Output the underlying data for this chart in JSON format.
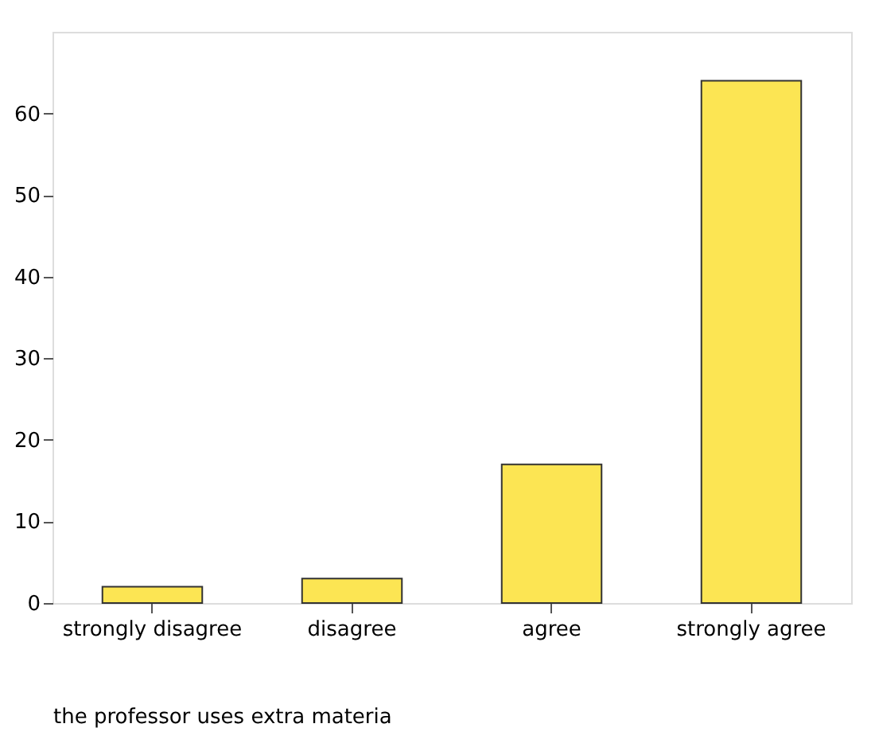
{
  "chart_data": {
    "type": "bar",
    "xlabel": "the professor uses extra materia",
    "categories": [
      "strongly disagree",
      "disagree",
      "agree",
      "strongly agree"
    ],
    "values": [
      2,
      3,
      17,
      64
    ],
    "color": "#fce553",
    "ylim": [
      0,
      70
    ],
    "yticks": [
      0,
      10,
      20,
      30,
      40,
      50,
      60
    ],
    "grid": false
  }
}
